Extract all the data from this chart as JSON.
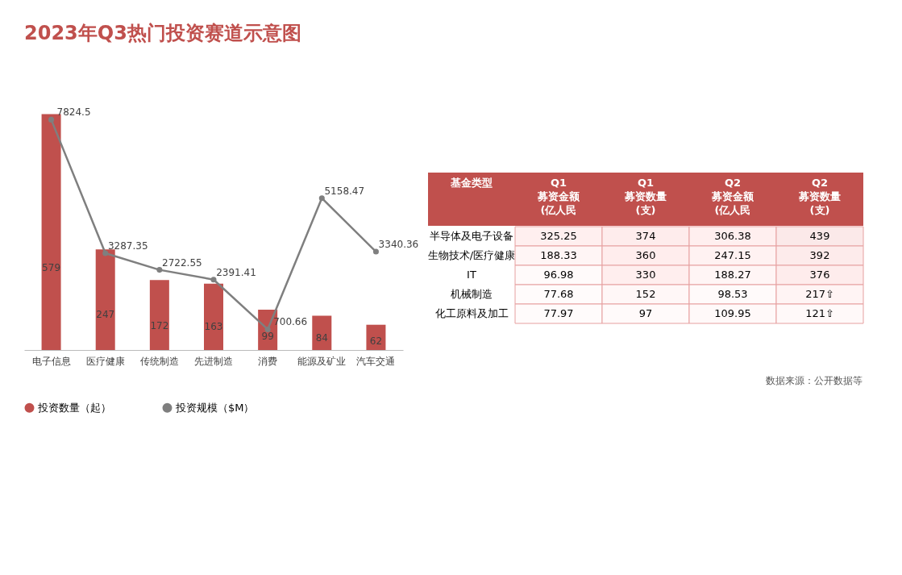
{
  "chart_data": [
    {
      "type": "bar",
      "title": "2023年Q3热门投资赛道示意图",
      "categories": [
        "电子信息",
        "医疗健康",
        "传统制造",
        "先进制造",
        "消费",
        "能源及矿业",
        "汽车交通"
      ],
      "series": [
        {
          "name": "投资数量（起）",
          "color": "#c0504d",
          "values": [
            579,
            247,
            172,
            163,
            99,
            84,
            62
          ]
        },
        {
          "name": "投资规模（$M）",
          "color": "#7f7f7f",
          "type": "line",
          "axis": "y2",
          "values": [
            7824.5,
            3287.35,
            2722.55,
            2391.41,
            700.66,
            5158.47,
            3340.36
          ]
        }
      ],
      "data_labels": true,
      "legend": "bottom",
      "marker": "circle",
      "tick_labels": "x",
      "grid": false,
      "annotations": [
        "数据来源：公开数据等"
      ]
    },
    {
      "type": "heatmap",
      "ylabel": "基金类型",
      "categories": [
        "Q1\n募资金额\n(亿人民",
        "Q1\n募资数量\n(支)",
        "Q2\n募资金额\n(亿人民",
        "Q2\n募资数量\n(支)"
      ],
      "y_categories": [
        "半导体及电子设备",
        "生物技术/医疗健康",
        "IT",
        "机械制造",
        "化工原料及加工"
      ],
      "cells": [
        [
          325.25,
          374,
          306.38,
          439
        ],
        [
          188.33,
          360,
          247.15,
          392
        ],
        [
          96.98,
          330,
          188.27,
          376
        ],
        [
          77.68,
          152,
          98.53,
          217
        ],
        [
          77.97,
          97,
          109.95,
          121
        ]
      ],
      "cell_labels": [
        [
          "325.25",
          "374",
          "306.38",
          "439"
        ],
        [
          "188.33",
          "360",
          "247.15",
          "392"
        ],
        [
          "96.98",
          "330",
          "188.27",
          "376"
        ],
        [
          "77.68",
          "152",
          "98.53",
          "217⇧"
        ],
        [
          "77.97",
          "97",
          "109.95",
          "121⇧"
        ]
      ]
    }
  ]
}
